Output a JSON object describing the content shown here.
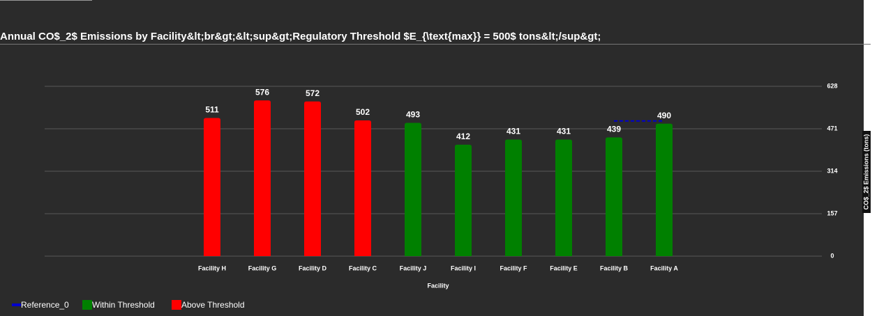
{
  "chart_data": {
    "type": "bar",
    "title": "Annual CO$_2$ Emissions by Facility&lt;br&gt;&lt;sup&gt;Regulatory Threshold $E_{\\text{max}} = 500$ tons&lt;/sup&gt;",
    "x_label": "Facility",
    "y_label": "CO$_2$ Emissions (tons)",
    "categories": [
      "Facility H",
      "Facility G",
      "Facility D",
      "Facility C",
      "Facility J",
      "Facility I",
      "Facility F",
      "Facility E",
      "Facility B",
      "Facility A"
    ],
    "series": [
      {
        "name": "Reference_0",
        "color": "#0000cc",
        "type": "line",
        "values": [
          null,
          null,
          null,
          null,
          null,
          null,
          null,
          null,
          500,
          500
        ]
      },
      {
        "name": "Within Threshold",
        "color": "#008000",
        "type": "bar",
        "values": [
          null,
          null,
          null,
          null,
          493,
          412,
          431,
          431,
          439,
          490
        ]
      },
      {
        "name": "Above Threshold",
        "color": "#ff0000",
        "type": "bar",
        "values": [
          511,
          576,
          572,
          502,
          null,
          null,
          null,
          null,
          null,
          null
        ]
      }
    ],
    "ylim": [
      0,
      628
    ],
    "yticks": [
      0,
      157,
      314,
      471,
      628
    ],
    "grid": true,
    "y_axis_side": "right",
    "legend": "bottom-left"
  }
}
